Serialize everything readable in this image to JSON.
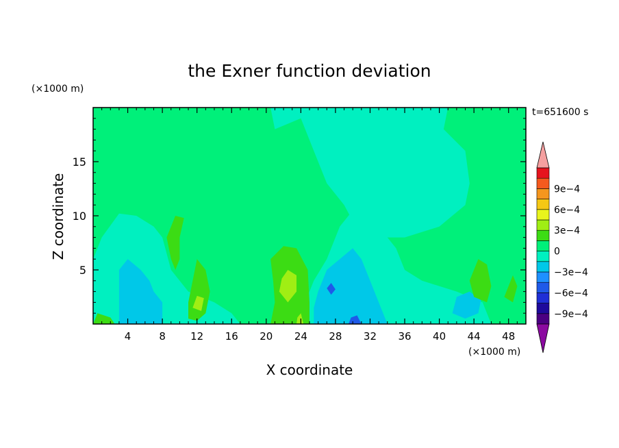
{
  "chart_data": {
    "type": "heatmap",
    "title": "the Exner function deviation",
    "xlabel": "X coordinate",
    "ylabel": "Z coordinate",
    "x_unit": "(×1000 m)",
    "y_unit": "(×1000 m)",
    "time_label": "t=651600 s",
    "xlim": [
      0,
      50
    ],
    "ylim": [
      0,
      20
    ],
    "x_ticks": [
      4,
      8,
      12,
      16,
      20,
      24,
      28,
      32,
      36,
      40,
      44,
      48
    ],
    "y_ticks": [
      5,
      10,
      15
    ],
    "x_tick_labels": [
      "4",
      "8",
      "12",
      "16",
      "20",
      "24",
      "28",
      "32",
      "36",
      "40",
      "44",
      "48"
    ],
    "y_tick_labels": [
      "5",
      "10",
      "15"
    ],
    "colorbar": {
      "levels": [
        -0.001,
        -0.0009,
        -0.00075,
        -0.0006,
        -0.00045,
        -0.0003,
        -0.00015,
        0,
        0.00015,
        0.0003,
        0.00045,
        0.0006,
        0.00075,
        0.0009,
        0.001
      ],
      "colors": [
        "#4b0082",
        "#1e0a9c",
        "#1f2fd6",
        "#1f5ae8",
        "#1e90ff",
        "#00c8e8",
        "#00f0c0",
        "#00f07a",
        "#3cdc14",
        "#a0ee14",
        "#e8f41c",
        "#f5c814",
        "#f5961e",
        "#f55a1e",
        "#e6141e"
      ],
      "under_color": "#8b0aa0",
      "over_color": "#f5a0a0",
      "tick_labels": [
        "9e−4",
        "6e−4",
        "3e−4",
        "0",
        "−3e−4",
        "−6e−4",
        "−9e−4"
      ],
      "tick_values": [
        0.0009,
        0.0006,
        0.0003,
        0,
        -0.0003,
        -0.0006,
        -0.0009
      ]
    },
    "background_value": 5e-05,
    "field_regions": [
      {
        "name": "upper-central-negative",
        "value": -0.0001,
        "points": [
          [
            20.5,
            20
          ],
          [
            41,
            20
          ],
          [
            40.5,
            18
          ],
          [
            43,
            16
          ],
          [
            43.5,
            13
          ],
          [
            43,
            11
          ],
          [
            40,
            9
          ],
          [
            36,
            8
          ],
          [
            33,
            8
          ],
          [
            30,
            9.5
          ],
          [
            29,
            11
          ],
          [
            27,
            13
          ],
          [
            25.5,
            16
          ],
          [
            24,
            19
          ],
          [
            21,
            18
          ]
        ]
      },
      {
        "name": "lower-left-negative",
        "value": -0.0001,
        "points": [
          [
            0,
            0
          ],
          [
            17,
            0
          ],
          [
            16,
            1
          ],
          [
            14,
            2
          ],
          [
            11,
            3
          ],
          [
            9,
            5
          ],
          [
            8,
            8
          ],
          [
            7,
            9
          ],
          [
            5,
            10
          ],
          [
            3,
            10.2
          ],
          [
            1,
            8
          ],
          [
            0,
            6
          ]
        ]
      },
      {
        "name": "lower-center-negative",
        "value": -0.0001,
        "points": [
          [
            24.5,
            0
          ],
          [
            46,
            0
          ],
          [
            45,
            2
          ],
          [
            42,
            3
          ],
          [
            38,
            4
          ],
          [
            36,
            5
          ],
          [
            35,
            7
          ],
          [
            33,
            9
          ],
          [
            32,
            10
          ],
          [
            30,
            10.5
          ],
          [
            28.5,
            9
          ],
          [
            27,
            6
          ],
          [
            25.5,
            4
          ],
          [
            24.5,
            2
          ]
        ]
      },
      {
        "name": "left-lower-cyan",
        "value": -0.00025,
        "points": [
          [
            3,
            0
          ],
          [
            8,
            0
          ],
          [
            8,
            2
          ],
          [
            7,
            3
          ],
          [
            6.5,
            4
          ],
          [
            5.5,
            5
          ],
          [
            4,
            6
          ],
          [
            3,
            5
          ],
          [
            3,
            2.5
          ]
        ]
      },
      {
        "name": "center-lower-cyan",
        "value": -0.00025,
        "points": [
          [
            25.5,
            0
          ],
          [
            34,
            0
          ],
          [
            33,
            2
          ],
          [
            32,
            4
          ],
          [
            31,
            6
          ],
          [
            30,
            7
          ],
          [
            28.5,
            6
          ],
          [
            27,
            5
          ],
          [
            26,
            3
          ],
          [
            25.5,
            1.5
          ]
        ]
      },
      {
        "name": "right-lower-cyan",
        "value": -0.00025,
        "points": [
          [
            41.5,
            1
          ],
          [
            43,
            0.5
          ],
          [
            44.5,
            1
          ],
          [
            44.8,
            2.2
          ],
          [
            43.5,
            3
          ],
          [
            42,
            2.5
          ]
        ]
      },
      {
        "name": "center-blue-spot-1",
        "value": -0.0005,
        "points": [
          [
            27,
            3.3
          ],
          [
            27.5,
            2.7
          ],
          [
            28,
            3.2
          ],
          [
            27.5,
            3.8
          ]
        ]
      },
      {
        "name": "center-blue-spot-2",
        "value": -0.0005,
        "points": [
          [
            29.5,
            0
          ],
          [
            31,
            0
          ],
          [
            30.5,
            0.8
          ],
          [
            29.8,
            0.6
          ]
        ]
      },
      {
        "name": "yellowgreen-left-a",
        "value": 0.00025,
        "points": [
          [
            8.5,
            8
          ],
          [
            9.5,
            10
          ],
          [
            10.5,
            9.8
          ],
          [
            10,
            8
          ],
          [
            10,
            6
          ],
          [
            9.5,
            5
          ],
          [
            9,
            6
          ]
        ]
      },
      {
        "name": "yellowgreen-left-b",
        "value": 0.00025,
        "points": [
          [
            11,
            0.5
          ],
          [
            12,
            0.3
          ],
          [
            13,
            1
          ],
          [
            13.5,
            3
          ],
          [
            13,
            5
          ],
          [
            12,
            6
          ],
          [
            11.5,
            4
          ],
          [
            11,
            2
          ]
        ]
      },
      {
        "name": "yellowgreen-mid",
        "value": 0.00025,
        "points": [
          [
            20.5,
            0
          ],
          [
            25,
            0
          ],
          [
            25,
            2
          ],
          [
            24.8,
            5
          ],
          [
            23.5,
            7
          ],
          [
            22,
            7.2
          ],
          [
            20.5,
            6
          ],
          [
            20.8,
            4
          ],
          [
            21,
            2
          ]
        ]
      },
      {
        "name": "yellowgreen-right",
        "value": 0.00025,
        "points": [
          [
            43.5,
            4
          ],
          [
            44.5,
            6
          ],
          [
            45.5,
            5.5
          ],
          [
            46,
            3.5
          ],
          [
            45.5,
            2
          ],
          [
            44,
            2.5
          ]
        ]
      },
      {
        "name": "yellowgreen-far-right",
        "value": 0.00025,
        "points": [
          [
            47.5,
            2.5
          ],
          [
            48.5,
            4.5
          ],
          [
            49,
            3.5
          ],
          [
            48.5,
            2
          ]
        ]
      },
      {
        "name": "yellowgreen-bottom-left",
        "value": 0.00025,
        "points": [
          [
            0,
            0
          ],
          [
            2.5,
            0
          ],
          [
            2,
            0.6
          ],
          [
            0.5,
            1
          ]
        ]
      },
      {
        "name": "yellow-mid-a",
        "value": 0.0004,
        "points": [
          [
            21.5,
            3
          ],
          [
            22.5,
            2
          ],
          [
            23.5,
            3
          ],
          [
            23.5,
            4.5
          ],
          [
            22.5,
            5
          ],
          [
            21.8,
            4.2
          ]
        ]
      },
      {
        "name": "yellow-mid-b",
        "value": 0.0004,
        "points": [
          [
            23.5,
            0
          ],
          [
            24.3,
            0
          ],
          [
            24,
            1
          ],
          [
            23.6,
            0.6
          ]
        ]
      },
      {
        "name": "yellow-left-spot",
        "value": 0.0004,
        "points": [
          [
            11.5,
            1.5
          ],
          [
            12.5,
            1.2
          ],
          [
            12.8,
            2.4
          ],
          [
            12,
            2.6
          ]
        ]
      }
    ]
  }
}
